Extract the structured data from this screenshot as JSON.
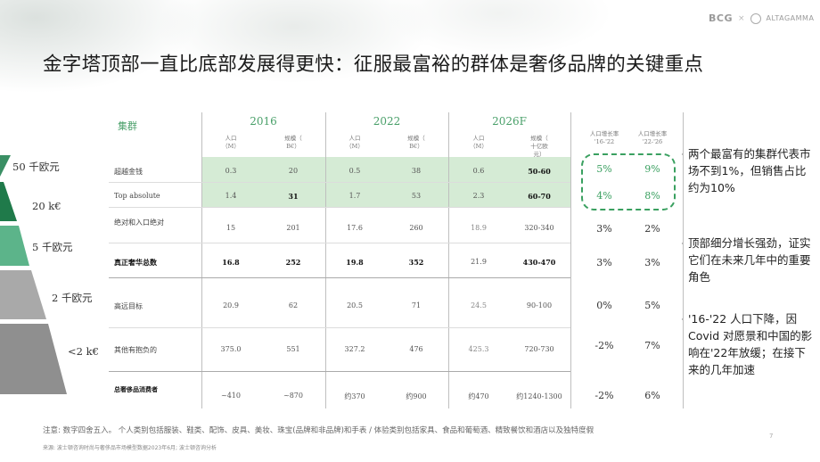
{
  "logo": {
    "bcg": "BCG",
    "x": "×",
    "altagamma": "ALTAGAMMA"
  },
  "title": "金字塔顶部一直比底部发展得更快：征服最富裕的群体是奢侈品牌的关键重点",
  "pyramid": [
    {
      "label": "50 千欧元",
      "color": "#3a8f64"
    },
    {
      "label": "20 k€",
      "color": "#1f7a4a"
    },
    {
      "label": "5 千欧元",
      "color": "#5cb48a"
    },
    {
      "label": "2 千欧元",
      "color": "#a9a9a9"
    },
    {
      "label": "<2 k€",
      "color": "#8f8f8f"
    }
  ],
  "table": {
    "cluster_header": "集群",
    "years": [
      "2016",
      "2022",
      "2026F"
    ],
    "subheaders": {
      "pop": "人口\n（M）",
      "size": "规模（\nB€）",
      "size_2026": "规模（\n十亿欧\n元）",
      "growth_a": "人口增长率\n'16-'22",
      "growth_b": "人口增长率\n'22-'26"
    },
    "rows": [
      {
        "label": "超越金钱",
        "values": [
          "0.3",
          "20",
          "0.5",
          "38",
          "0.6",
          "50-60"
        ],
        "g1": "5%",
        "g2": "9%"
      },
      {
        "label": "Top absolute",
        "values": [
          "1.4",
          "31",
          "1.7",
          "53",
          "2.3",
          "60-70"
        ],
        "g1": "4%",
        "g2": "8%"
      },
      {
        "label": "绝对和入口绝对",
        "values": [
          "15",
          "201",
          "17.6",
          "260",
          "18.9",
          "320-340"
        ],
        "g1": "3%",
        "g2": "2%"
      },
      {
        "label": "真正奢华总数",
        "values": [
          "16.8",
          "252",
          "19.8",
          "352",
          "21.9",
          "430-470"
        ],
        "g1": "3%",
        "g2": "3%"
      },
      {
        "label": "高远目标",
        "values": [
          "20.9",
          "62",
          "20.5",
          "71",
          "24.5",
          "90-100"
        ],
        "g1": "0%",
        "g2": "5%"
      },
      {
        "label": "其他有抱负的",
        "values": [
          "375.0",
          "551",
          "327.2",
          "476",
          "425.3",
          "720-730"
        ],
        "g1": "-2%",
        "g2": "7%"
      },
      {
        "label": "总奢侈品消费者",
        "values": [
          "~410",
          "~870",
          "约370",
          "约900",
          "约470",
          "约1240-1300"
        ],
        "g1": "-2%",
        "g2": "6%"
      }
    ]
  },
  "notes": [
    "两个最富有的集群代表市场不到1%，但销售占比约为10%",
    "顶部细分增长强劲，证实它们在未来几年中的重要角色",
    "'16-'22 人口下降，因 Covid 对愿景和中国的影响在'22年放缓；在接下来的几年加速"
  ],
  "footnote": "注意: 数字四舍五入。 个人类别包括服装、鞋类、配饰、皮具、美妆、珠宝(品牌和非品牌)和手表 / 体验类别包括家具、食品和葡萄酒、精致餐饮和酒店以及独特度假",
  "source": "来源: 波士顿咨询时尚与奢侈品市场模型数据2023年6月; 波士顿咨询分析",
  "page_number": "7"
}
